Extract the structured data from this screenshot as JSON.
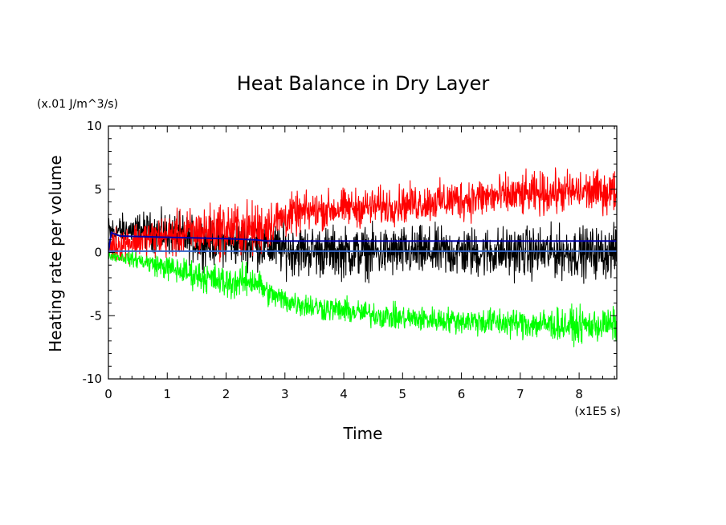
{
  "chart_data": {
    "type": "line",
    "title": "Heat Balance in Dry Layer",
    "unit_label": "(x.01 J/m^3/s)",
    "xlabel": "Time",
    "x_unit_label": "(x1E5 s)",
    "ylabel": "Heating rate per volume",
    "xlim": [
      0,
      8.64
    ],
    "ylim": [
      -10,
      10
    ],
    "x_ticks": [
      0,
      1,
      2,
      3,
      4,
      5,
      6,
      7,
      8
    ],
    "y_ticks": [
      -10,
      -5,
      0,
      5,
      10
    ],
    "grid": false,
    "legend": "none",
    "series": [
      {
        "color": "#000000",
        "x": [
          0,
          0.5,
          1.0,
          1.5,
          2.0,
          2.5,
          3.0,
          3.5,
          4.0,
          4.5,
          5.0,
          5.5,
          6.0,
          6.5,
          7.0,
          7.5,
          8.0,
          8.64
        ],
        "mean": [
          1.6,
          1.8,
          1.5,
          0.9,
          0.8,
          0.6,
          0.2,
          0.1,
          0.0,
          0.0,
          0.0,
          0.0,
          0.0,
          0.0,
          0.0,
          0.0,
          0.0,
          0.0
        ],
        "spread": [
          0.8,
          0.8,
          1.0,
          1.1,
          1.1,
          1.1,
          1.2,
          1.2,
          1.2,
          1.2,
          1.2,
          1.2,
          1.2,
          1.2,
          1.2,
          1.2,
          1.2,
          1.2
        ]
      },
      {
        "color": "#ff0000",
        "x": [
          0,
          0.5,
          1.0,
          1.5,
          2.0,
          2.5,
          3.0,
          3.5,
          4.0,
          4.5,
          5.0,
          5.5,
          6.0,
          6.5,
          7.0,
          7.5,
          8.0,
          8.64
        ],
        "mean": [
          0.5,
          1.0,
          1.3,
          1.6,
          1.9,
          1.8,
          2.8,
          3.3,
          3.5,
          3.6,
          3.8,
          4.0,
          4.2,
          4.4,
          4.5,
          4.7,
          4.8,
          4.8
        ],
        "spread": [
          0.8,
          0.9,
          1.0,
          1.2,
          1.3,
          1.3,
          1.0,
          0.9,
          0.9,
          0.9,
          0.9,
          0.9,
          1.0,
          1.0,
          1.0,
          1.0,
          1.0,
          1.0
        ]
      },
      {
        "color": "#00ff00",
        "x": [
          0,
          0.5,
          1.0,
          1.5,
          2.0,
          2.5,
          2.7,
          3.0,
          3.5,
          4.0,
          4.5,
          5.0,
          5.5,
          6.0,
          6.5,
          7.0,
          7.5,
          8.0,
          8.64
        ],
        "mean": [
          -0.2,
          -0.6,
          -1.2,
          -1.8,
          -2.4,
          -2.2,
          -3.2,
          -3.8,
          -4.3,
          -4.6,
          -4.9,
          -5.2,
          -5.3,
          -5.4,
          -5.5,
          -5.6,
          -5.7,
          -5.8,
          -5.7
        ],
        "spread": [
          0.2,
          0.4,
          0.6,
          0.7,
          0.8,
          0.8,
          0.6,
          0.6,
          0.6,
          0.6,
          0.6,
          0.6,
          0.6,
          0.6,
          0.7,
          0.7,
          0.8,
          0.8,
          0.8
        ]
      },
      {
        "color": "#0000aa",
        "x": [
          0,
          0.05,
          0.08,
          0.2,
          1.0,
          2.0,
          2.5,
          2.7,
          3.0,
          4.0,
          5.0,
          6.0,
          7.0,
          8.0,
          8.64
        ],
        "mean": [
          0.1,
          1.6,
          1.5,
          1.3,
          1.2,
          1.1,
          1.0,
          0.9,
          0.9,
          0.9,
          0.9,
          0.9,
          0.9,
          0.9,
          0.9
        ],
        "spread": [
          0,
          0,
          0,
          0,
          0,
          0,
          0,
          0,
          0,
          0,
          0,
          0,
          0,
          0,
          0
        ]
      },
      {
        "color": "#3366cc",
        "x": [
          0,
          8.64
        ],
        "mean": [
          0.1,
          0.1
        ],
        "spread": [
          0,
          0
        ]
      }
    ]
  }
}
